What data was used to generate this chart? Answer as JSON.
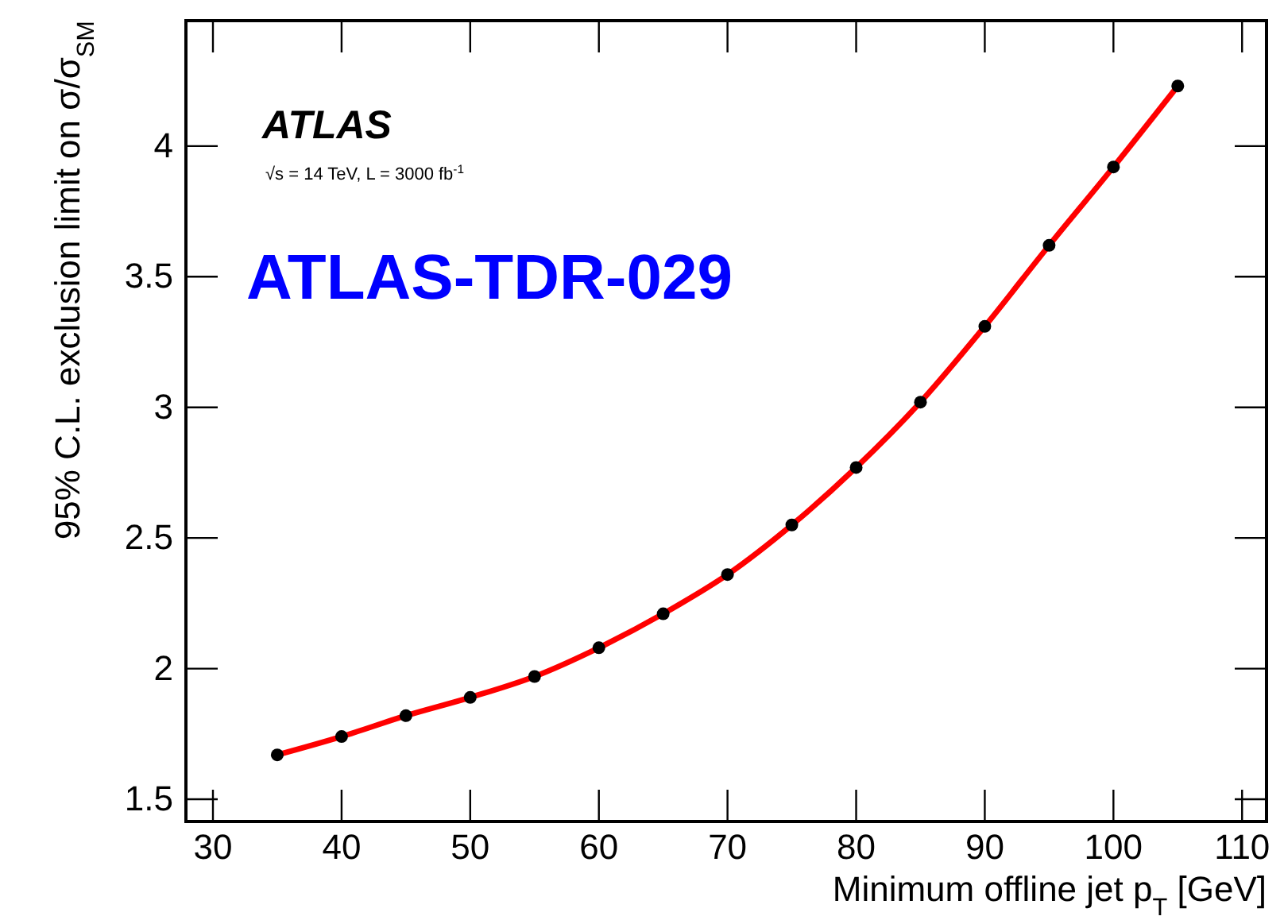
{
  "chart_data": {
    "type": "line",
    "xlabel": "Minimum offline jet p$_{T}$ [GeV]",
    "ylabel": "95% C.L. exclusion limit on σ/σ$_{SM}$",
    "annotations": [
      "ATLAS",
      "√s = 14 TeV, L = 3000 fb$^{-1}$",
      "ATLAS-TDR-029"
    ],
    "x": [
      35,
      40,
      45,
      50,
      55,
      60,
      65,
      70,
      75,
      80,
      85,
      90,
      95,
      100,
      105
    ],
    "series": [
      {
        "color": "#ff0000",
        "values": [
          1.67,
          1.74,
          1.82,
          1.89,
          1.97,
          2.08,
          2.21,
          2.36,
          2.55,
          2.77,
          3.02,
          3.31,
          3.62,
          3.92,
          4.23
        ]
      }
    ],
    "marker": "circle",
    "line_style": "solid",
    "grid": false,
    "xlim": [
      27.9,
      111.9
    ],
    "ylim": [
      1.415,
      4.48
    ],
    "xticks": [
      30,
      40,
      50,
      60,
      70,
      80,
      90,
      100,
      110
    ],
    "yticks": [
      1.5,
      2,
      2.5,
      3,
      3.5,
      4
    ]
  }
}
